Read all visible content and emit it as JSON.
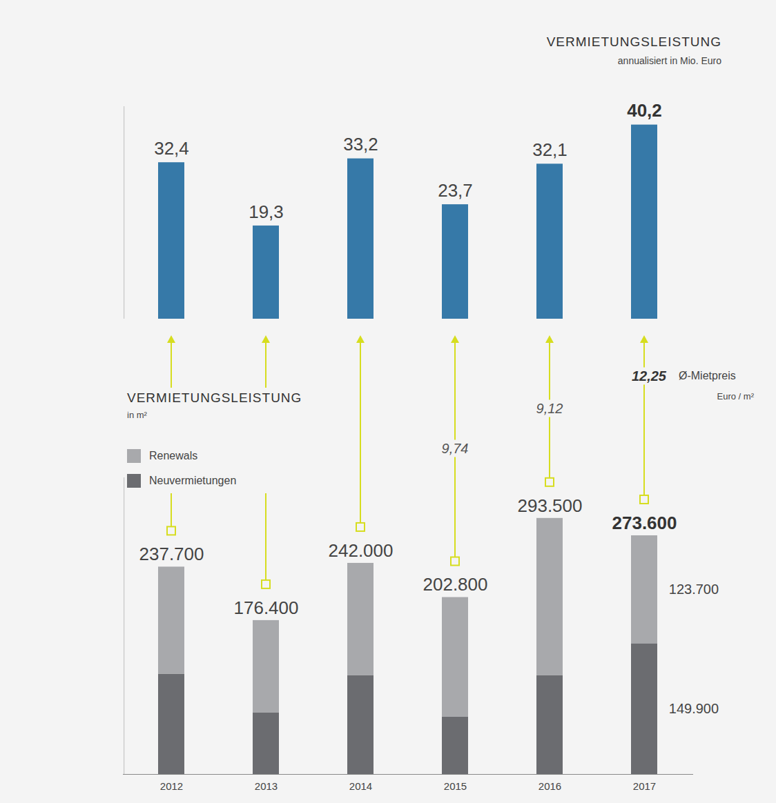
{
  "chart_data": [
    {
      "type": "bar",
      "title": "VERMIETUNGSLEISTUNG",
      "subtitle": "annualisiert in Mio. Euro",
      "categories": [
        "2012",
        "2013",
        "2014",
        "2015",
        "2016",
        "2017"
      ],
      "values": [
        32.4,
        19.3,
        33.2,
        23.7,
        32.1,
        40.2
      ],
      "value_labels": [
        "32,4",
        "19,3",
        "33,2",
        "23,7",
        "32,1",
        "40,2"
      ],
      "color": "#3679a8",
      "ylim": [
        0,
        44
      ],
      "yticks": [],
      "data_labels": true,
      "tick_labels": false
    },
    {
      "type": "bar",
      "title": "VERMIETUNGSLEISTUNG",
      "subtitle": "in m²",
      "categories": [
        "2012",
        "2013",
        "2014",
        "2015",
        "2016",
        "2017"
      ],
      "stacked": true,
      "series": [
        {
          "name": "Renewals",
          "color": "#a8a9ac",
          "values": [
            123000,
            106000,
            128900,
            137100,
            180400,
            123700
          ],
          "value_labels": [
            null,
            null,
            null,
            null,
            null,
            "123.700"
          ]
        },
        {
          "name": "Neuvermietungen",
          "color": "#6b6c70",
          "values": [
            114700,
            70400,
            113100,
            65700,
            113100,
            149900
          ],
          "value_labels": [
            null,
            null,
            null,
            null,
            null,
            "149.900"
          ]
        }
      ],
      "totals": {
        "values": [
          237700,
          176400,
          242000,
          202800,
          293500,
          273600
        ],
        "value_labels": [
          "237.700",
          "176.400",
          "242.000",
          "202.800",
          "293.500",
          "273.600"
        ]
      },
      "rent": {
        "title": "Ø-Mietpreis",
        "unit": "Euro / m²",
        "values": [
          null,
          null,
          null,
          9.74,
          9.12,
          12.25
        ],
        "value_labels": [
          null,
          null,
          null,
          "9,74",
          "9,12",
          "12,25"
        ]
      },
      "ylim": [
        0,
        340000
      ],
      "yticks": [],
      "data_labels": true,
      "tick_labels": "x",
      "legend": "upper left"
    }
  ]
}
